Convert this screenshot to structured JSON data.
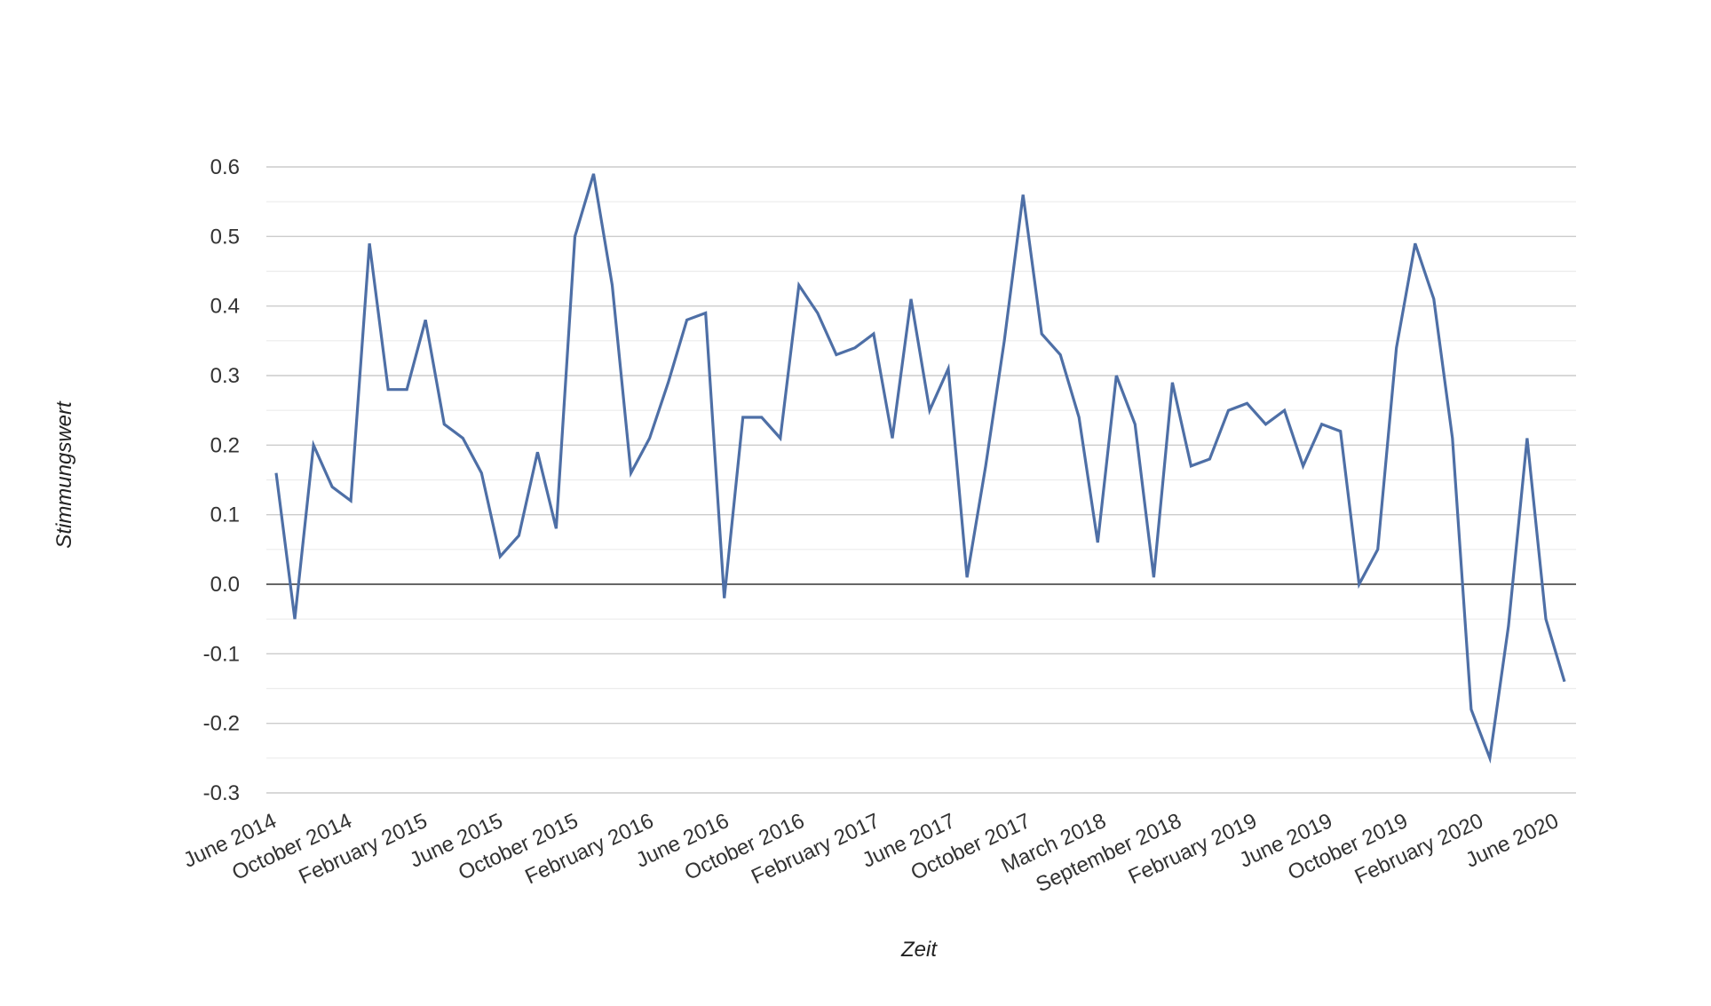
{
  "chart_data": {
    "type": "line",
    "xlabel": "Zeit",
    "ylabel": "Stimmungswert",
    "ylim": [
      -0.3,
      0.6
    ],
    "yticks": [
      0.6,
      0.5,
      0.4,
      0.3,
      0.2,
      0.1,
      0.0,
      -0.1,
      -0.2,
      -0.3
    ],
    "ytick_labels": [
      "0.6",
      "0.5",
      "0.4",
      "0.3",
      "0.2",
      "0.1",
      "0.0",
      "-0.1",
      "-0.2",
      "-0.3"
    ],
    "x_tick_labels": [
      "June 2014",
      "October 2014",
      "February 2015",
      "June 2015",
      "October 2015",
      "February 2016",
      "June 2016",
      "October 2016",
      "February 2017",
      "June 2017",
      "October 2017",
      "March 2018",
      "September 2018",
      "February 2019",
      "June 2019",
      "October 2019",
      "February 2020",
      "June 2020"
    ],
    "grid": true,
    "line_color": "#4e6fa6",
    "values": [
      0.16,
      -0.05,
      0.2,
      0.14,
      0.12,
      0.49,
      0.28,
      0.28,
      0.38,
      0.23,
      0.21,
      0.16,
      0.04,
      0.07,
      0.19,
      0.08,
      0.5,
      0.59,
      0.43,
      0.16,
      0.21,
      0.29,
      0.38,
      0.39,
      -0.02,
      0.24,
      0.24,
      0.21,
      0.43,
      0.39,
      0.33,
      0.34,
      0.36,
      0.21,
      0.41,
      0.25,
      0.31,
      0.01,
      0.17,
      0.35,
      0.56,
      0.36,
      0.33,
      0.24,
      0.06,
      0.3,
      0.23,
      0.01,
      0.29,
      0.17,
      0.18,
      0.25,
      0.26,
      0.23,
      0.25,
      0.17,
      0.23,
      0.22,
      0.0,
      0.05,
      0.34,
      0.49,
      0.41,
      0.21,
      -0.18,
      -0.25,
      -0.06,
      0.21,
      -0.05,
      -0.14
    ]
  }
}
